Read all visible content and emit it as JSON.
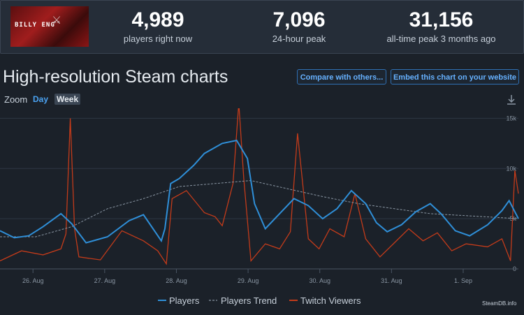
{
  "stats": [
    {
      "value": "4,989",
      "label": "players right now"
    },
    {
      "value": "7,096",
      "label": "24-hour peak"
    },
    {
      "value": "31,156",
      "label": "all-time peak 3 months ago"
    }
  ],
  "game_logo_text": "BILLY ENG",
  "page_title": "High-resolution Steam charts",
  "buttons": {
    "compare": "Compare with others...",
    "embed": "Embed this chart on your website"
  },
  "zoom": {
    "label": "Zoom",
    "day": "Day",
    "week": "Week"
  },
  "credit": "SteamDB.info",
  "colors": {
    "players": "#2f8fd8",
    "trend": "#8a96a3",
    "twitch": "#c33b1a",
    "accent": "#66b1ff"
  },
  "chart_data": {
    "type": "line",
    "x_ticks": [
      "26. Aug",
      "27. Aug",
      "28. Aug",
      "29. Aug",
      "30. Aug",
      "31. Aug",
      "1. Sep"
    ],
    "x_range_days": [
      0,
      7.23
    ],
    "y_ticks": [
      "15k",
      "10k",
      "5k",
      "0"
    ],
    "y_tick_values": [
      15000,
      10000,
      5000,
      0
    ],
    "ylim": [
      0,
      16000
    ],
    "legend": [
      "Players",
      "Players Trend",
      "Twitch Viewers"
    ],
    "series": [
      {
        "name": "Players",
        "points": [
          [
            0,
            3800
          ],
          [
            0.2,
            3100
          ],
          [
            0.4,
            3300
          ],
          [
            0.6,
            4200
          ],
          [
            0.85,
            5500
          ],
          [
            1.0,
            4500
          ],
          [
            1.2,
            2600
          ],
          [
            1.5,
            3200
          ],
          [
            1.8,
            4800
          ],
          [
            2.0,
            5400
          ],
          [
            2.25,
            2800
          ],
          [
            2.3,
            4000
          ],
          [
            2.38,
            8500
          ],
          [
            2.5,
            9000
          ],
          [
            2.7,
            10300
          ],
          [
            2.85,
            11500
          ],
          [
            3.1,
            12500
          ],
          [
            3.3,
            12800
          ],
          [
            3.45,
            11000
          ],
          [
            3.55,
            6500
          ],
          [
            3.7,
            4000
          ],
          [
            3.9,
            5500
          ],
          [
            4.1,
            7000
          ],
          [
            4.3,
            6300
          ],
          [
            4.5,
            5000
          ],
          [
            4.7,
            6000
          ],
          [
            4.9,
            7800
          ],
          [
            5.1,
            6500
          ],
          [
            5.25,
            4600
          ],
          [
            5.4,
            3700
          ],
          [
            5.6,
            4400
          ],
          [
            5.8,
            5700
          ],
          [
            6.0,
            6500
          ],
          [
            6.15,
            5500
          ],
          [
            6.35,
            3800
          ],
          [
            6.55,
            3300
          ],
          [
            6.8,
            4400
          ],
          [
            7.0,
            5800
          ],
          [
            7.1,
            6800
          ],
          [
            7.23,
            5000
          ]
        ]
      },
      {
        "name": "Players Trend",
        "points": [
          [
            0,
            3200
          ],
          [
            0.5,
            3200
          ],
          [
            1.0,
            4200
          ],
          [
            1.5,
            6000
          ],
          [
            2.0,
            7000
          ],
          [
            2.5,
            8200
          ],
          [
            3.0,
            8500
          ],
          [
            3.5,
            8800
          ],
          [
            4.0,
            8000
          ],
          [
            4.5,
            7200
          ],
          [
            5.0,
            6500
          ],
          [
            5.5,
            6000
          ],
          [
            6.0,
            5500
          ],
          [
            6.5,
            5300
          ],
          [
            7.0,
            5100
          ],
          [
            7.23,
            5000
          ]
        ]
      },
      {
        "name": "Twitch Viewers",
        "points": [
          [
            0,
            800
          ],
          [
            0.3,
            1800
          ],
          [
            0.6,
            1400
          ],
          [
            0.85,
            2000
          ],
          [
            0.92,
            3500
          ],
          [
            0.98,
            15000
          ],
          [
            1.04,
            4000
          ],
          [
            1.1,
            1200
          ],
          [
            1.4,
            900
          ],
          [
            1.7,
            3800
          ],
          [
            2.0,
            2800
          ],
          [
            2.2,
            1800
          ],
          [
            2.32,
            500
          ],
          [
            2.4,
            7000
          ],
          [
            2.6,
            7800
          ],
          [
            2.85,
            5600
          ],
          [
            3.0,
            5200
          ],
          [
            3.1,
            4300
          ],
          [
            3.25,
            8500
          ],
          [
            3.33,
            16500
          ],
          [
            3.4,
            9000
          ],
          [
            3.5,
            800
          ],
          [
            3.7,
            2500
          ],
          [
            3.9,
            2000
          ],
          [
            4.05,
            3700
          ],
          [
            4.15,
            13500
          ],
          [
            4.3,
            3000
          ],
          [
            4.45,
            2000
          ],
          [
            4.6,
            4000
          ],
          [
            4.8,
            3200
          ],
          [
            4.95,
            7500
          ],
          [
            5.1,
            3000
          ],
          [
            5.3,
            1200
          ],
          [
            5.5,
            2600
          ],
          [
            5.7,
            4000
          ],
          [
            5.9,
            2800
          ],
          [
            6.1,
            3600
          ],
          [
            6.3,
            1800
          ],
          [
            6.5,
            2500
          ],
          [
            6.8,
            2200
          ],
          [
            7.0,
            3000
          ],
          [
            7.12,
            800
          ],
          [
            7.18,
            9800
          ],
          [
            7.23,
            7500
          ]
        ]
      }
    ]
  }
}
